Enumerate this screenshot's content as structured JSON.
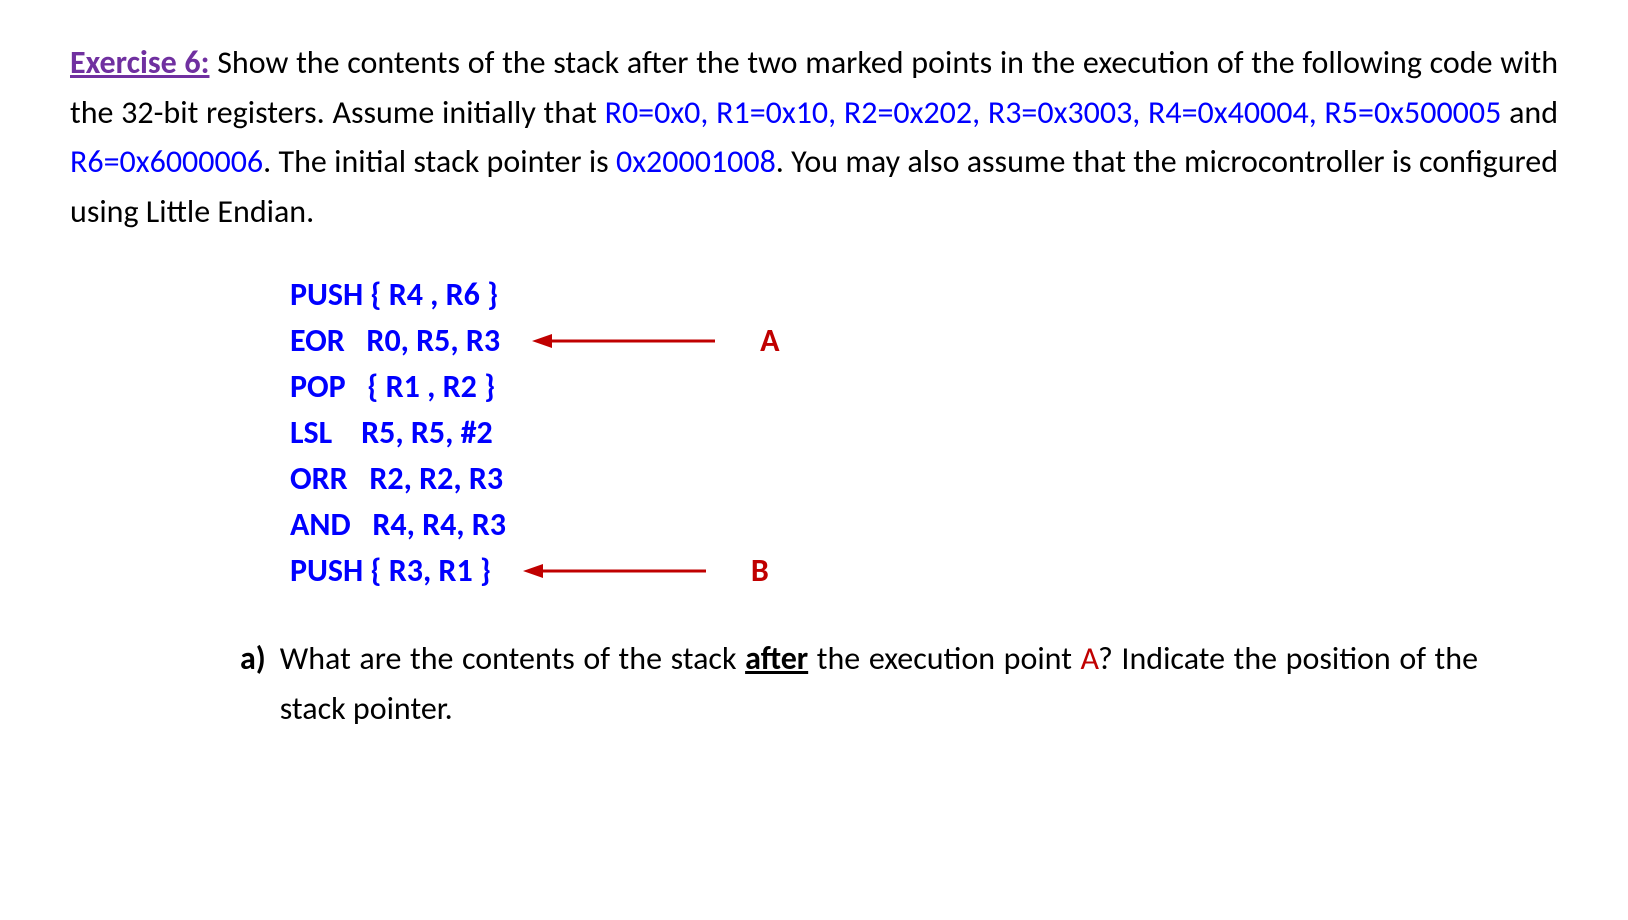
{
  "exercise": {
    "label": "Exercise 6:",
    "intro_text_1": "  Show  the  contents  of  the  stack  after  the  two  marked  points  in  the execution  of  the  following  code  with  the  32-bit  registers.  Assume  initially  that ",
    "registers": "R0=0x0,   R1=0x10,   R2=0x202,   R3=0x3003,   R4=0x40004,   R5=0x500005",
    "and_text": "   and ",
    "r6": "R6=0x6000006",
    "sp_intro": ". The initial stack pointer is ",
    "sp_value": "0x20001008",
    "endian_text": ". You may also assume that the microcontroller is configured using Little Endian."
  },
  "code": {
    "lines": [
      {
        "text": "PUSH { R4 , R6 }",
        "marker": null
      },
      {
        "text": "EOR   R0, R5, R3",
        "marker": "A"
      },
      {
        "text": "POP   { R1 , R2 }",
        "marker": null
      },
      {
        "text": "LSL    R5, R5, #2",
        "marker": null
      },
      {
        "text": "ORR   R2, R2, R3",
        "marker": null
      },
      {
        "text": "AND   R4, R4, R3",
        "marker": null
      },
      {
        "text": "PUSH { R3, R1 }",
        "marker": "B"
      }
    ]
  },
  "question": {
    "label": "a)",
    "text_1": "What  are  the  contents  of  the  stack  ",
    "after": "after",
    "text_2": "  the  execution  point  ",
    "point": "A",
    "text_3": "? Indicate the position of the stack pointer."
  },
  "colors": {
    "exercise_label": "#7030a0",
    "blue": "#0000ff",
    "red": "#c00000",
    "arrow_stroke": "#c00000"
  }
}
